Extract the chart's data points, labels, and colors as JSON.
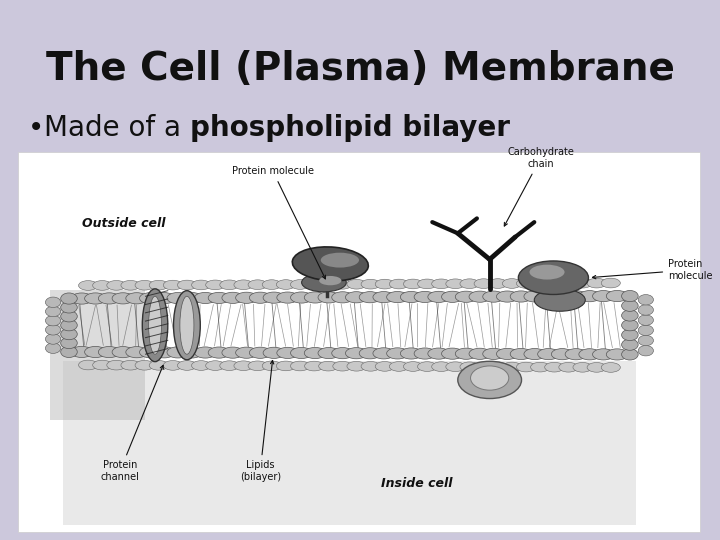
{
  "title": "The Cell (Plasma) Membrane",
  "bullet_normal": "Made of a ",
  "bullet_bold": "phospholipid bilayer",
  "bg_color": "#ccc8dc",
  "title_color": "#111111",
  "bullet_color": "#111111",
  "title_fontsize": 28,
  "bullet_fontsize": 20,
  "diagram_bg": "#ffffff",
  "head_color": "#b8b8b8",
  "head_edge": "#555555",
  "tail_color": "#777777",
  "protein_dark": "#555555",
  "protein_mid": "#888888",
  "protein_light": "#aaaaaa",
  "carb_color": "#111111",
  "shadow_color": "#cccccc",
  "ann_color": "#111111",
  "outside_label_color": "#111111",
  "inside_label_color": "#111111"
}
